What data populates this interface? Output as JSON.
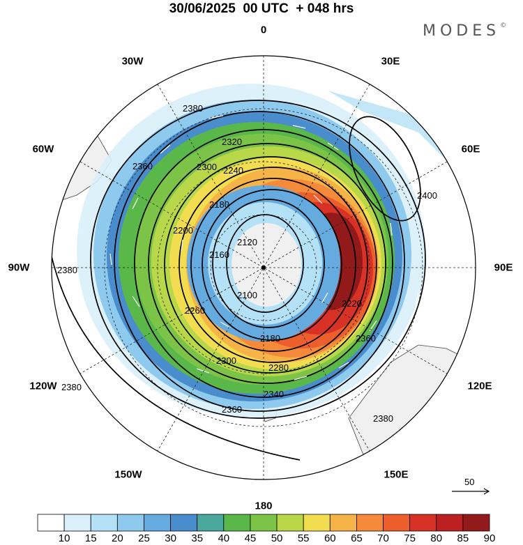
{
  "title": "30/06/2025  00 UTC  + 048 hrs",
  "brand": "MODES",
  "brand_mark": "©",
  "longitude_labels": {
    "lon_0": "0",
    "lon_30e": "30E",
    "lon_60e": "60E",
    "lon_90e": "90E",
    "lon_120e": "120E",
    "lon_150e": "150E",
    "lon_180": "180",
    "lon_150w": "150W",
    "lon_120w": "120W",
    "lon_90w": "90W",
    "lon_60w": "60W",
    "lon_30w": "30W"
  },
  "contour_labels": [
    "2380",
    "2360",
    "2320",
    "2300",
    "2240",
    "2180",
    "2120",
    "2160",
    "2100",
    "2200",
    "2220",
    "2260",
    "2280",
    "2340",
    "2400"
  ],
  "wind_scale_value": "50",
  "colorbar": {
    "ticks": [
      "10",
      "15",
      "20",
      "25",
      "30",
      "35",
      "40",
      "45",
      "50",
      "55",
      "60",
      "65",
      "70",
      "75",
      "80",
      "85",
      "90"
    ],
    "colors": [
      "#ffffff",
      "#d9f0fb",
      "#b5e1f6",
      "#8ec9ee",
      "#66abe0",
      "#4a8dcc",
      "#4aa89c",
      "#5ab84a",
      "#7cc447",
      "#b8d84a",
      "#f2dc50",
      "#f6b347",
      "#f48a3a",
      "#ec5f2d",
      "#d83226",
      "#bd2020",
      "#931a1a"
    ]
  }
}
